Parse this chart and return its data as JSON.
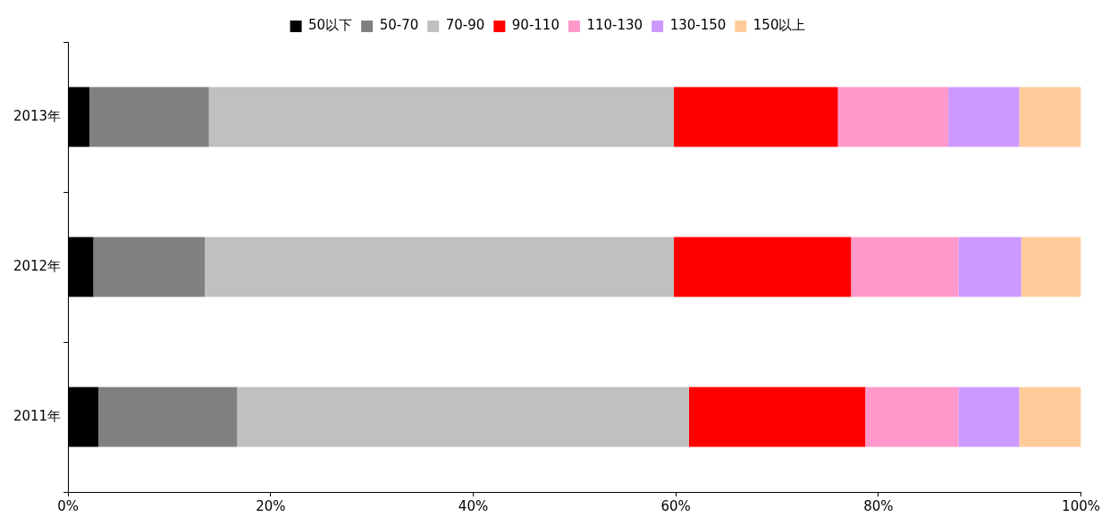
{
  "chart_data": {
    "type": "bar",
    "orientation": "horizontal",
    "stacked": true,
    "legend": "top",
    "categories": [
      "2013年",
      "2012年",
      "2011年"
    ],
    "series": [
      {
        "name": "50以下",
        "color": "#000000",
        "values": [
          2.1,
          2.5,
          3.0
        ]
      },
      {
        "name": "50-70",
        "color": "#808080",
        "values": [
          11.8,
          11.0,
          13.7
        ]
      },
      {
        "name": "70-90",
        "color": "#c0c0c0",
        "values": [
          45.9,
          46.3,
          44.6
        ]
      },
      {
        "name": "90-110",
        "color": "#ff0000",
        "values": [
          16.2,
          17.5,
          17.4
        ]
      },
      {
        "name": "110-130",
        "color": "#ff99cc",
        "values": [
          10.9,
          10.6,
          9.2
        ]
      },
      {
        "name": "130-150",
        "color": "#cc99ff",
        "values": [
          7.0,
          6.2,
          6.0
        ]
      },
      {
        "name": "150以上",
        "color": "#ffcc99",
        "values": [
          6.1,
          5.9,
          6.1
        ]
      }
    ],
    "xlim": [
      0,
      100
    ],
    "xticks": [
      {
        "value": 0,
        "label": "0%"
      },
      {
        "value": 20,
        "label": "20%"
      },
      {
        "value": 40,
        "label": "40%"
      },
      {
        "value": 60,
        "label": "60%"
      },
      {
        "value": 80,
        "label": "80%"
      },
      {
        "value": 100,
        "label": "100%"
      }
    ]
  }
}
